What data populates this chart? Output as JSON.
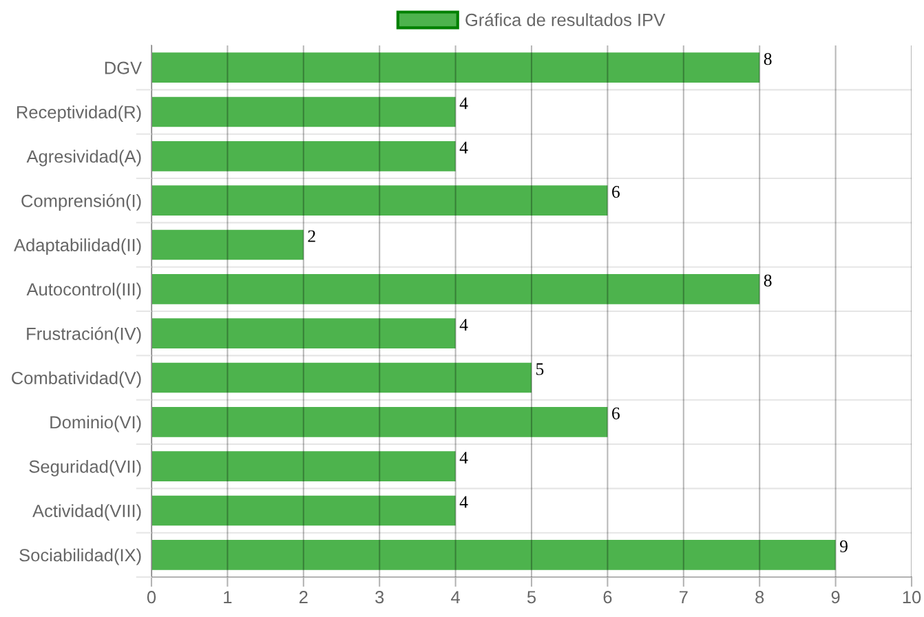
{
  "chart_data": {
    "type": "bar",
    "orientation": "horizontal",
    "categories": [
      "DGV",
      "Receptividad(R)",
      "Agresividad(A)",
      "Comprensión(I)",
      "Adaptabilidad(II)",
      "Autocontrol(III)",
      "Frustración(IV)",
      "Combatividad(V)",
      "Dominio(VI)",
      "Seguridad(VII)",
      "Actividad(VIII)",
      "Sociabilidad(IX)"
    ],
    "series": [
      {
        "name": "Gráfica de resultados IPV",
        "color": "#4db34d",
        "values": [
          8,
          4,
          4,
          6,
          2,
          8,
          4,
          5,
          6,
          4,
          4,
          9
        ]
      }
    ],
    "xlim": [
      0,
      10
    ],
    "xticks": [
      0,
      1,
      2,
      3,
      4,
      5,
      6,
      7,
      8,
      9,
      10
    ],
    "grid": true,
    "legend": "top",
    "data_labels": true
  }
}
